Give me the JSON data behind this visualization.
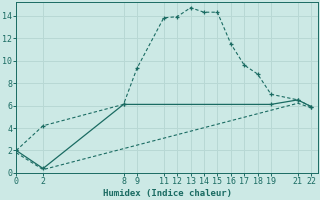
{
  "xlabel": "Humidex (Indice chaleur)",
  "bg_color": "#cce9e5",
  "line_color": "#1a6b62",
  "grid_color": "#b8d8d4",
  "line1_x": [
    0,
    2,
    8,
    9,
    11,
    12,
    13,
    14,
    15,
    16,
    17,
    18,
    19,
    21,
    22
  ],
  "line1_y": [
    2.0,
    4.2,
    6.1,
    9.3,
    13.8,
    13.9,
    14.7,
    14.3,
    14.3,
    11.5,
    9.6,
    8.8,
    7.0,
    6.5,
    5.9
  ],
  "line2_x": [
    0,
    2,
    8,
    19,
    21,
    22
  ],
  "line2_y": [
    2.0,
    0.4,
    6.1,
    6.1,
    6.5,
    5.9
  ],
  "line3_x": [
    0,
    2,
    21,
    22
  ],
  "line3_y": [
    1.8,
    0.3,
    6.2,
    5.8
  ],
  "xlim": [
    0,
    22.5
  ],
  "ylim": [
    0,
    15.2
  ],
  "xticks": [
    0,
    2,
    8,
    9,
    11,
    12,
    13,
    14,
    15,
    16,
    17,
    18,
    19,
    21,
    22
  ],
  "yticks": [
    0,
    2,
    4,
    6,
    8,
    10,
    12,
    14
  ],
  "axis_fontsize": 6.5,
  "tick_fontsize": 6.0
}
